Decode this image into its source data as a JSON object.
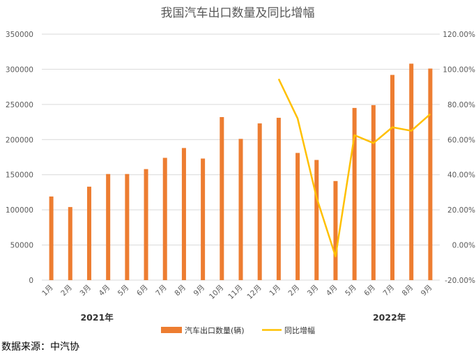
{
  "chart_data": {
    "type": "bar",
    "title": "我国汽车出口数量及同比增幅",
    "categories": [
      "1月",
      "2月",
      "3月",
      "4月",
      "5月",
      "6月",
      "7月",
      "8月",
      "9月",
      "10月",
      "11月",
      "12月",
      "1月",
      "2月",
      "3月",
      "4月",
      "5月",
      "6月",
      "7月",
      "8月",
      "9月"
    ],
    "year_groups": [
      {
        "label": "2021年",
        "start": 0,
        "end": 11
      },
      {
        "label": "2022年",
        "start": 12,
        "end": 20
      }
    ],
    "series": [
      {
        "name": "汽车出口数量(辆)",
        "type": "bar",
        "axis": "left",
        "color": "#ED7D31",
        "values": [
          119000,
          104000,
          133000,
          151000,
          151000,
          158000,
          174000,
          188000,
          173000,
          232000,
          201000,
          223000,
          231000,
          181000,
          171000,
          141000,
          245000,
          249000,
          292000,
          308000,
          301000
        ]
      },
      {
        "name": "同比增幅",
        "type": "line",
        "axis": "right",
        "color": "#FFC000",
        "values": [
          null,
          null,
          null,
          null,
          null,
          null,
          null,
          null,
          null,
          null,
          null,
          null,
          0.945,
          0.72,
          0.27,
          -0.065,
          0.625,
          0.58,
          0.67,
          0.65,
          0.745
        ]
      }
    ],
    "y_left": {
      "min": 0,
      "max": 350000,
      "step": 50000,
      "ticks": [
        "0",
        "50000",
        "100000",
        "150000",
        "200000",
        "250000",
        "300000",
        "350000"
      ]
    },
    "y_right": {
      "min": -0.2,
      "max": 1.2,
      "step": 0.2,
      "ticks": [
        "-20.00%",
        "0.00%",
        "20.00%",
        "40.00%",
        "60.00%",
        "80.00%",
        "100.00%",
        "120.00%"
      ]
    },
    "grid": true,
    "legend_position": "bottom"
  },
  "source_text": "数据来源：中汽协"
}
